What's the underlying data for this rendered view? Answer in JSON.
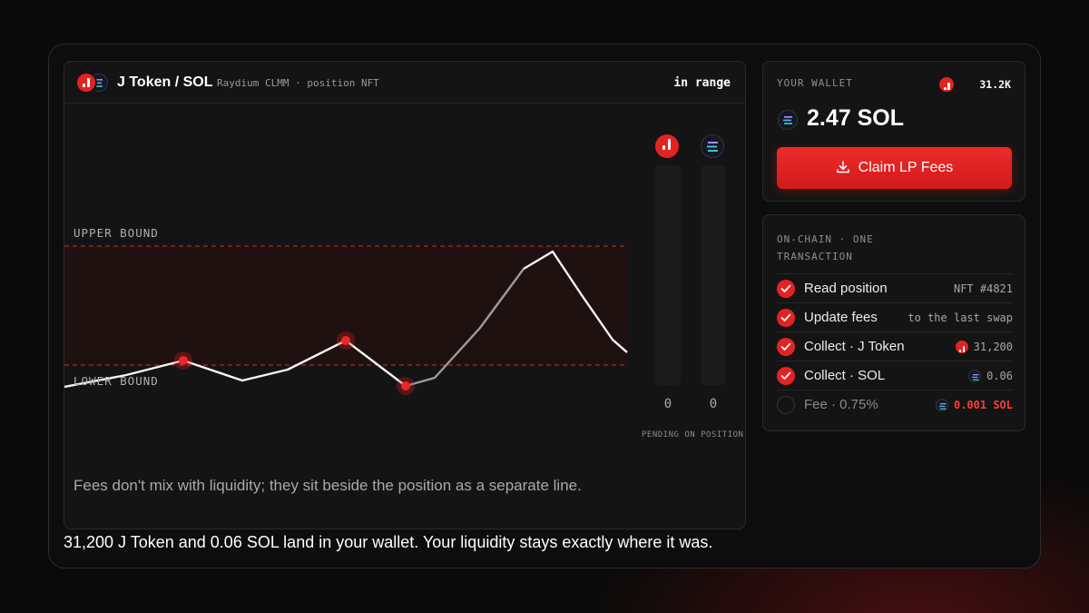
{
  "position": {
    "pair_title": "J Token / SOL",
    "subtitle": "Raydium CLMM · position NFT",
    "status": "in range"
  },
  "chart": {
    "upper_label": "UPPER BOUND",
    "lower_label": "LOWER BOUND",
    "price_path": [
      358,
      345,
      329,
      351,
      339,
      307,
      357,
      348,
      293,
      228,
      209,
      257,
      306,
      320
    ],
    "fee_markers": [
      2,
      5,
      6
    ],
    "fees": {
      "j_token": "0",
      "sol": "0"
    },
    "pending_label": "PENDING ON POSITION",
    "caption": "Fees don't mix with liquidity; they sit beside the position as a separate line."
  },
  "wallet": {
    "label": "YOUR WALLET",
    "j_token_balance": "31.2K",
    "sol_balance": "2.47 SOL",
    "claim_label": "Claim LP Fees"
  },
  "transaction": {
    "heading": "ON-CHAIN · ONE TRANSACTION",
    "steps": [
      {
        "label": "Read position",
        "value": "NFT #4821",
        "done": true,
        "icon": ""
      },
      {
        "label": "Update fees",
        "value": "to the last swap",
        "done": true,
        "icon": ""
      },
      {
        "label": "Collect · J Token",
        "value": "31,200",
        "done": true,
        "icon": "j-token-icon"
      },
      {
        "label": "Collect · SOL",
        "value": "0.06",
        "done": true,
        "icon": "sol-icon"
      },
      {
        "label": "Fee · 0.75%",
        "value": "0.001 SOL",
        "done": false,
        "icon": "sol-icon"
      }
    ]
  },
  "summary": "31,200 J Token and 0.06 SOL land in your wallet. Your liquidity stays exactly where it was.",
  "colors": {
    "accent": "#e32222",
    "background": "#0a0a0a",
    "panel": "#141414"
  }
}
